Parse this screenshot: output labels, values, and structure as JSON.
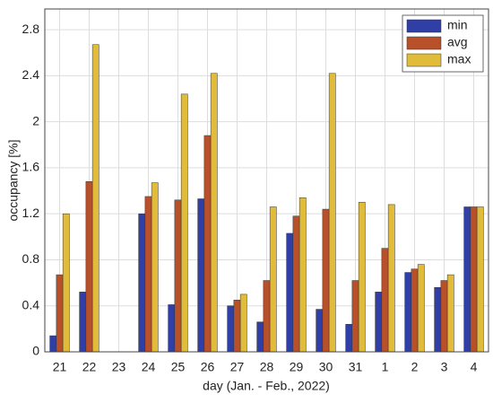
{
  "chart_data": {
    "type": "bar",
    "xlabel": "day (Jan. - Feb., 2022)",
    "ylabel": "occupancy [%]",
    "categories": [
      "21",
      "22",
      "23",
      "24",
      "25",
      "26",
      "27",
      "28",
      "29",
      "30",
      "31",
      "1",
      "2",
      "3",
      "4"
    ],
    "series": [
      {
        "name": "min",
        "color": "#2f3fa6",
        "values": [
          0.14,
          0.52,
          0,
          1.2,
          0.41,
          1.33,
          0.4,
          0.26,
          1.03,
          0.37,
          0.24,
          0.52,
          0.69,
          0.56,
          1.26
        ]
      },
      {
        "name": "avg",
        "color": "#b8502a",
        "values": [
          0.67,
          1.48,
          0,
          1.35,
          1.32,
          1.88,
          0.45,
          0.62,
          1.18,
          1.24,
          0.62,
          0.9,
          0.72,
          0.62,
          1.26
        ]
      },
      {
        "name": "max",
        "color": "#e0bc3a",
        "values": [
          1.2,
          2.67,
          0,
          1.47,
          2.24,
          2.42,
          0.5,
          1.26,
          1.34,
          2.42,
          1.3,
          1.28,
          0.76,
          0.67,
          1.26
        ]
      }
    ],
    "ylim": [
      0,
      2.98
    ],
    "yticks": [
      0,
      0.4,
      0.8,
      1.2,
      1.6,
      2,
      2.4,
      2.8
    ],
    "grid": true,
    "legend": "top-right"
  }
}
